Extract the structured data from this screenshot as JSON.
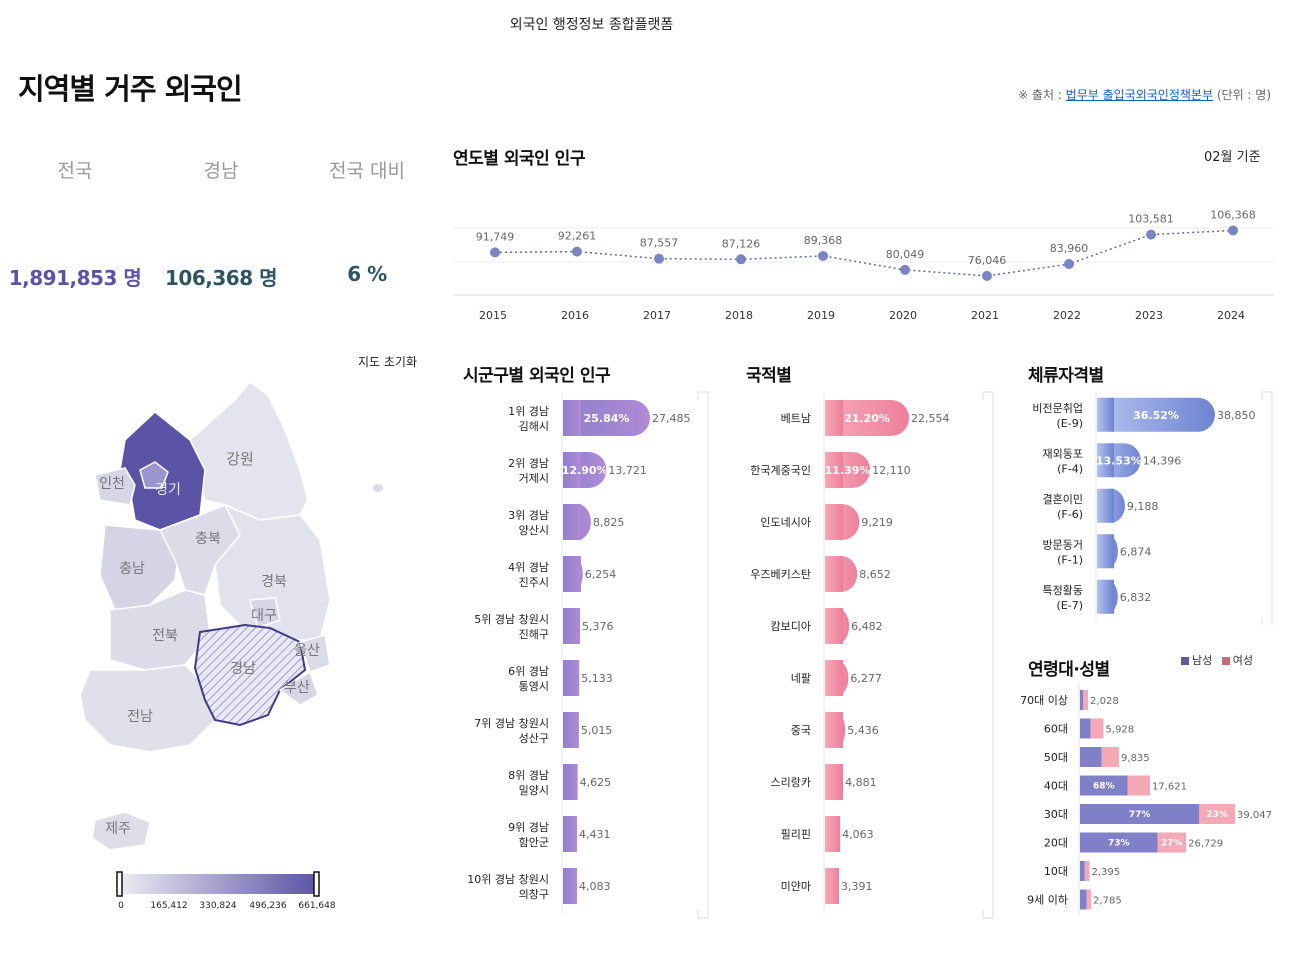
{
  "header": {
    "site_title": "외국인 행정정보 종합플랫폼",
    "page_title": "지역별 거주 외국인",
    "source_prefix": "※ 출처 :",
    "source_link": "법무부 출입국외국인정책본부",
    "source_unit": "(단위 : 명)"
  },
  "summary": {
    "national_label": "전국",
    "region_label": "경남",
    "ratio_label": "전국 대비",
    "national_value": "1,891,853 명",
    "region_value": "106,368 명",
    "ratio_value": "6 %"
  },
  "colors": {
    "purple_dark": "#5b53a5",
    "purple_mid": "#8e86c4",
    "teal_dark": "#2f5563",
    "pink": "#f28aa2",
    "blue_grad": "#7d8fd8",
    "male": "#5b5ba8",
    "female": "#c86b7b"
  },
  "map": {
    "reset_label": "지도 초기화",
    "regions": [
      "강원",
      "인천",
      "경기",
      "충북",
      "충남",
      "경북",
      "대구",
      "전북",
      "울산",
      "경남",
      "부산",
      "전남",
      "제주"
    ],
    "scale_ticks": [
      "0",
      "165,412",
      "330,824",
      "496,236",
      "661,648"
    ]
  },
  "chart_data": [
    {
      "type": "line",
      "title": "연도별 외국인 인구",
      "note": "02월 기준",
      "x": [
        "2015",
        "2016",
        "2017",
        "2018",
        "2019",
        "2020",
        "2021",
        "2022",
        "2023",
        "2024"
      ],
      "values": [
        91749,
        92261,
        87557,
        87126,
        89368,
        80049,
        76046,
        83960,
        103581,
        106368
      ],
      "value_labels": [
        "91,749",
        "92,261",
        "87,557",
        "87,126",
        "89,368",
        "80,049",
        "76,046",
        "83,960",
        "103,581",
        "106,368"
      ]
    },
    {
      "type": "bar",
      "title": "시군구별 외국인 인구",
      "categories": [
        [
          "1위 경남",
          "김해시"
        ],
        [
          "2위 경남",
          "거제시"
        ],
        [
          "3위 경남",
          "양산시"
        ],
        [
          "4위 경남",
          "진주시"
        ],
        [
          "5위 경남 창원시",
          "진해구"
        ],
        [
          "6위 경남",
          "통영시"
        ],
        [
          "7위 경남 창원시",
          "성산구"
        ],
        [
          "8위 경남",
          "밀양시"
        ],
        [
          "9위 경남",
          "함안군"
        ],
        [
          "10위 경남 창원시",
          "의창구"
        ]
      ],
      "values": [
        27485,
        13721,
        8825,
        6254,
        5376,
        5133,
        5015,
        4625,
        4431,
        4083
      ],
      "value_labels": [
        "27,485",
        "13,721",
        "8,825",
        "6,254",
        "5,376",
        "5,133",
        "5,015",
        "4,625",
        "4,431",
        "4,083"
      ],
      "percent_labels": [
        "25.84%",
        "12.90%",
        "",
        "",
        "",
        "",
        "",
        "",
        "",
        ""
      ]
    },
    {
      "type": "bar",
      "title": "국적별",
      "categories": [
        [
          "베트남"
        ],
        [
          "한국계중국인"
        ],
        [
          "인도네시아"
        ],
        [
          "우즈베키스탄"
        ],
        [
          "캄보디아"
        ],
        [
          "네팔"
        ],
        [
          "중국"
        ],
        [
          "스리랑카"
        ],
        [
          "필리핀"
        ],
        [
          "미얀마"
        ]
      ],
      "values": [
        22554,
        12110,
        9219,
        8652,
        6482,
        6277,
        5436,
        4881,
        4063,
        3391
      ],
      "value_labels": [
        "22,554",
        "12,110",
        "9,219",
        "8,652",
        "6,482",
        "6,277",
        "5,436",
        "4,881",
        "4,063",
        "3,391"
      ],
      "percent_labels": [
        "21.20%",
        "11.39%",
        "",
        "",
        "",
        "",
        "",
        "",
        "",
        ""
      ]
    },
    {
      "type": "bar",
      "title": "체류자격별",
      "categories": [
        [
          "비전문취업",
          "(E-9)"
        ],
        [
          "재외동포",
          "(F-4)"
        ],
        [
          "결혼이민",
          "(F-6)"
        ],
        [
          "방문동거",
          "(F-1)"
        ],
        [
          "특정활동",
          "(E-7)"
        ]
      ],
      "values": [
        38850,
        14396,
        9188,
        6874,
        6832
      ],
      "value_labels": [
        "38,850",
        "14,396",
        "9,188",
        "6,874",
        "6,832"
      ],
      "percent_labels": [
        "36.52%",
        "13.53%",
        "",
        "",
        ""
      ]
    },
    {
      "type": "bar",
      "title": "연령대·성별",
      "legend": [
        "남성",
        "여성"
      ],
      "categories": [
        "70대 이상",
        "60대",
        "50대",
        "40대",
        "30대",
        "20대",
        "10대",
        "9세 이하"
      ],
      "totals": [
        2028,
        5928,
        9835,
        17621,
        39047,
        26729,
        2395,
        2785
      ],
      "total_labels": [
        "2,028",
        "5,928",
        "9,835",
        "17,621",
        "39,047",
        "26,729",
        "2,395",
        "2,785"
      ],
      "male_share": [
        0.4,
        0.45,
        0.55,
        0.68,
        0.77,
        0.73,
        0.5,
        0.6
      ],
      "male_labels": [
        "",
        "",
        "",
        "68%",
        "77%",
        "73%",
        "",
        ""
      ],
      "female_labels": [
        "",
        "",
        "",
        "",
        "23%",
        "27%",
        "",
        ""
      ]
    }
  ]
}
